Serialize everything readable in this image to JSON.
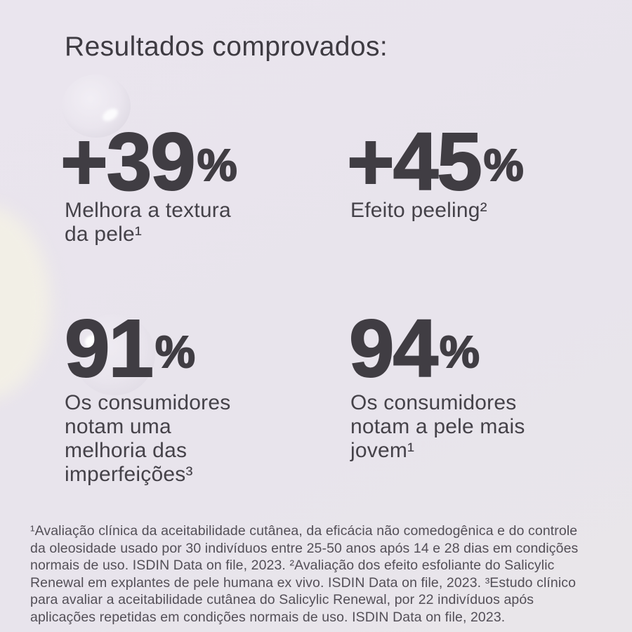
{
  "page": {
    "title": "Resultados comprovados:"
  },
  "colors": {
    "background": "#e9e5ec",
    "heading_text": "#3e3b42",
    "stat_number": "#403d43",
    "stat_description": "#454249",
    "footnote_text": "#534f57",
    "cream_blob": "#f2efe6"
  },
  "stats": [
    {
      "value": "+39",
      "unit": "%",
      "desc_lines": [
        "Melhora a textura",
        "da pele¹"
      ]
    },
    {
      "value": "+45",
      "unit": "%",
      "desc_lines": [
        "Efeito peeling²"
      ]
    },
    {
      "value": "91",
      "unit": "%",
      "desc_lines": [
        "Os consumidores",
        "notam uma",
        "melhoria das",
        "imperfeições³"
      ]
    },
    {
      "value": "94",
      "unit": "%",
      "desc_lines": [
        "Os consumidores",
        "notam a pele mais",
        "jovem¹"
      ]
    }
  ],
  "footnote": {
    "lines": [
      "¹Avaliação clínica da aceitabilidade cutânea, da eficácia não comedogênica e do controle",
      "da oleosidade usado por 30 indivíduos entre 25-50 anos após 14 e 28 dias em condições",
      "normais de uso. ISDIN Data on file, 2023. ²Avaliação dos efeito esfoliante do Salicylic",
      "Renewal em explantes de pele humana ex vivo. ISDIN Data on file, 2023. ³Estudo clínico",
      "para avaliar a aceitabilidade cutânea do Salicylic Renewal, por 22 indivíduos após",
      "aplicações repetidas em condições normais de uso. ISDIN Data on file, 2023."
    ]
  },
  "decorations": [
    "water-droplet-top-left",
    "cream-texture-left-edge",
    "water-droplet-behind-91"
  ]
}
